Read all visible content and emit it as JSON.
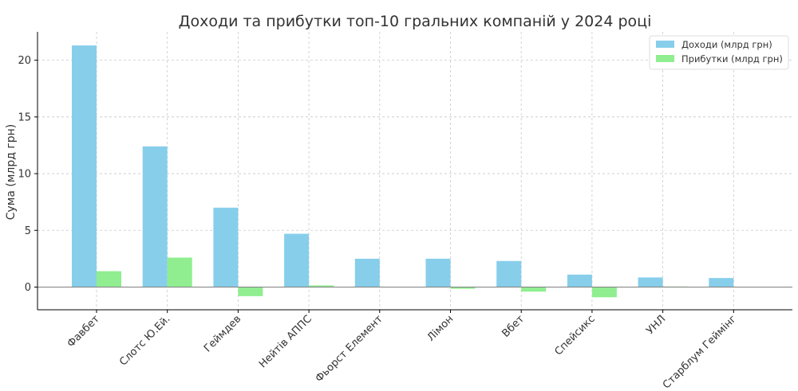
{
  "chart_data": {
    "type": "bar",
    "title": "Доходи та прибутки топ-10 гральних компаній у 2024 році",
    "xlabel": "",
    "ylabel": "Сума (млрд грн)",
    "ylim": [
      -2,
      22.5
    ],
    "yticks": [
      0,
      5,
      10,
      15,
      20
    ],
    "grid": true,
    "legend_position": "top-right",
    "categories": [
      "Фавбет",
      "Слотс Ю.Ей.",
      "Геймдев",
      "Нейтів АППС",
      "Фьорст Елемент",
      "Лімон",
      "Вбет",
      "Спейсикс",
      "УНЛ",
      "Старблум Геймінг"
    ],
    "series": [
      {
        "name": "Доходи (млрд грн)",
        "color": "#87ceeb",
        "values": [
          21.3,
          12.4,
          7.0,
          4.7,
          2.5,
          2.5,
          2.3,
          1.1,
          0.85,
          0.8
        ]
      },
      {
        "name": "Прибутки (млрд грн)",
        "color": "#90ee90",
        "values": [
          1.4,
          2.6,
          -0.8,
          0.15,
          0.0,
          -0.15,
          -0.4,
          -0.9,
          0.05,
          0.0
        ]
      }
    ]
  }
}
